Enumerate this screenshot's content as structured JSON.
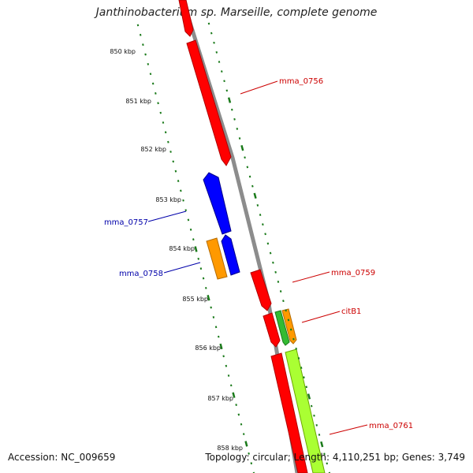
{
  "title": "Janthinobacterium sp. Marseille, complete genome",
  "footer": {
    "accession": "Accession: NC_009659",
    "stats": "Topology: circular; Length: 4,110,251 bp; Genes: 3,749"
  },
  "colors": {
    "backbone": "#8c8c8c",
    "tick": "#1a7a1a",
    "forward": "#ff0000",
    "reverse": "#0000ff",
    "orange": "#ff9900",
    "green": "#33bb33",
    "lime": "#aaff33",
    "forward_label": "#cc0000",
    "reverse_label": "#0000aa"
  },
  "scale": {
    "ticks": [
      "850 kbp",
      "851 kbp",
      "852 kbp",
      "853 kbp",
      "854 kbp",
      "855 kbp",
      "856 kbp",
      "857 kbp",
      "858 kbp"
    ]
  },
  "gene_labels": [
    {
      "text": "mma_0756",
      "strand": "forward"
    },
    {
      "text": "mma_0757",
      "strand": "reverse"
    },
    {
      "text": "mma_0758",
      "strand": "reverse"
    },
    {
      "text": "mma_0759",
      "strand": "forward"
    },
    {
      "text": "citB1",
      "strand": "forward"
    },
    {
      "text": "mma_0761",
      "strand": "forward"
    }
  ]
}
